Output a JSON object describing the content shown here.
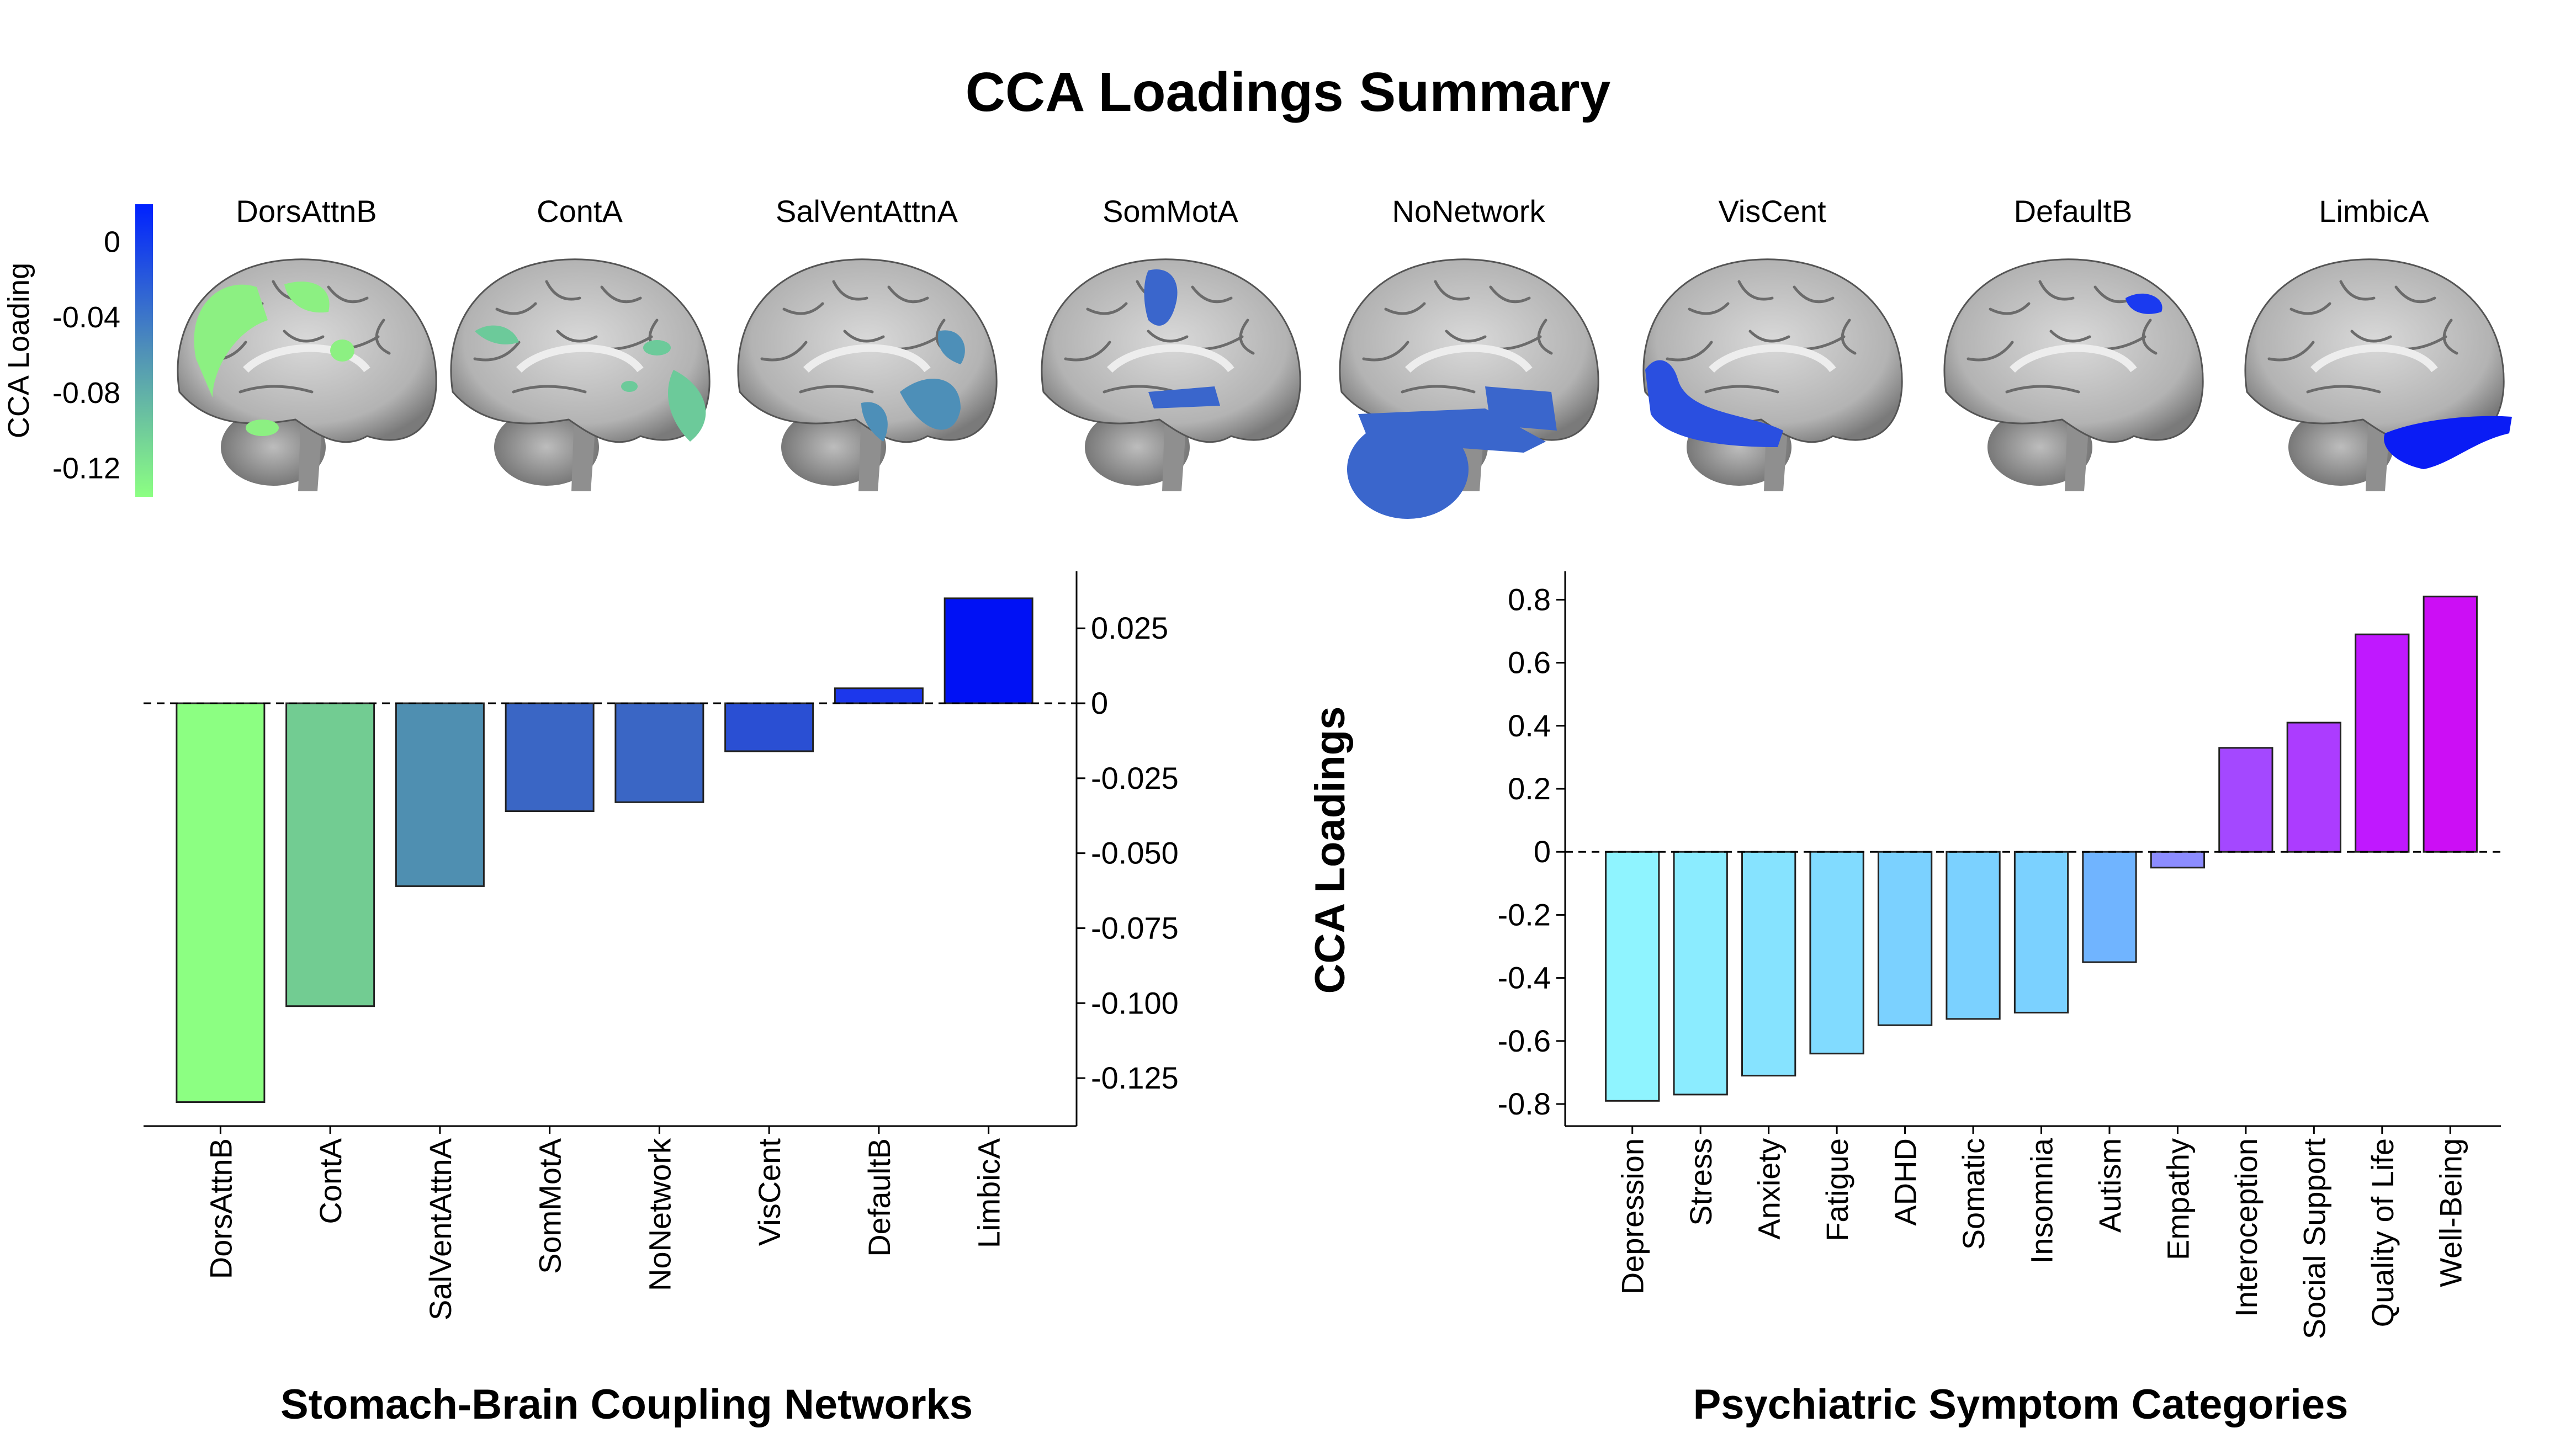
{
  "title": "CCA Loadings Summary",
  "colorbar": {
    "label": "CCA Loading",
    "ticks": [
      "0",
      "-0.04",
      "-0.08",
      "-0.12"
    ],
    "tick_values": [
      0,
      -0.04,
      -0.08,
      -0.12
    ],
    "range": [
      -0.135,
      0.02
    ],
    "color_low": "#8cff82",
    "color_mid": "#4f90b8",
    "color_high": "#0021ff"
  },
  "brains": [
    {
      "name": "DorsAttnB",
      "color": "#8cf082",
      "region": "parietal-frontal"
    },
    {
      "name": "ContA",
      "color": "#6cca9a",
      "region": "frontal-parietal"
    },
    {
      "name": "SalVentAttnA",
      "color": "#4d8fb8",
      "region": "insula-frontal"
    },
    {
      "name": "SomMotA",
      "color": "#3a66cc",
      "region": "central"
    },
    {
      "name": "NoNetwork",
      "color": "#3a66cc",
      "region": "temporal-cerebellar"
    },
    {
      "name": "VisCent",
      "color": "#2a4fe0",
      "region": "occipital"
    },
    {
      "name": "DefaultB",
      "color": "#1a3af0",
      "region": "medial-frontal"
    },
    {
      "name": "LimbicA",
      "color": "#0a1cf5",
      "region": "temporal-pole"
    }
  ],
  "chart_data": [
    {
      "type": "bar",
      "title": "",
      "xlabel": "Stomach-Brain Coupling Networks",
      "ylabel": "",
      "categories": [
        "DorsAttnB",
        "ContA",
        "SalVentAttnA",
        "SomMotA",
        "NoNetwork",
        "VisCent",
        "DefaultB",
        "LimbicA"
      ],
      "values": [
        -0.133,
        -0.101,
        -0.061,
        -0.036,
        -0.033,
        -0.016,
        0.005,
        0.035
      ],
      "colors": [
        "#8cff82",
        "#72cc92",
        "#4f8fb1",
        "#3a66c5",
        "#3a66c5",
        "#2a4fd3",
        "#1c37ec",
        "#0011f5"
      ],
      "yticks": [
        0.025,
        0,
        -0.025,
        -0.05,
        -0.075,
        -0.1,
        -0.125
      ],
      "ytick_labels": [
        "0.025",
        "0",
        "-0.025",
        "-0.050",
        "-0.075",
        "-0.100",
        "-0.125"
      ],
      "ylim": [
        -0.141,
        0.044
      ],
      "axis_side": "right",
      "zero_line": "dashed"
    },
    {
      "type": "bar",
      "title": "",
      "xlabel": "Psychiatric Symptom Categories",
      "ylabel": "CCA Loadings",
      "categories": [
        "Depression",
        "Stress",
        "Anxiety",
        "Fatigue",
        "ADHD",
        "Somatic",
        "Insomnia",
        "Autism",
        "Empathy",
        "Interoception",
        "Social Support",
        "Quality of Life",
        "Well-Being"
      ],
      "values": [
        -0.79,
        -0.77,
        -0.71,
        -0.64,
        -0.55,
        -0.53,
        -0.51,
        -0.35,
        -0.05,
        0.33,
        0.41,
        0.69,
        0.81
      ],
      "colors": [
        "#8ff4ff",
        "#8becff",
        "#86e3ff",
        "#81dbff",
        "#7bd1ff",
        "#7bd1ff",
        "#7bd1ff",
        "#70b4ff",
        "#8c8cff",
        "#a448ff",
        "#ac3cff",
        "#c018ff",
        "#cc0ef5"
      ],
      "yticks": [
        0.8,
        0.6,
        0.4,
        0.2,
        0,
        -0.2,
        -0.4,
        -0.6,
        -0.8
      ],
      "ytick_labels": [
        "0.8",
        "0.6",
        "0.4",
        "0.2",
        "0",
        "-0.2",
        "-0.4",
        "-0.6",
        "-0.8"
      ],
      "ylim": [
        -0.87,
        0.89
      ],
      "axis_side": "left",
      "zero_line": "dashed"
    }
  ]
}
